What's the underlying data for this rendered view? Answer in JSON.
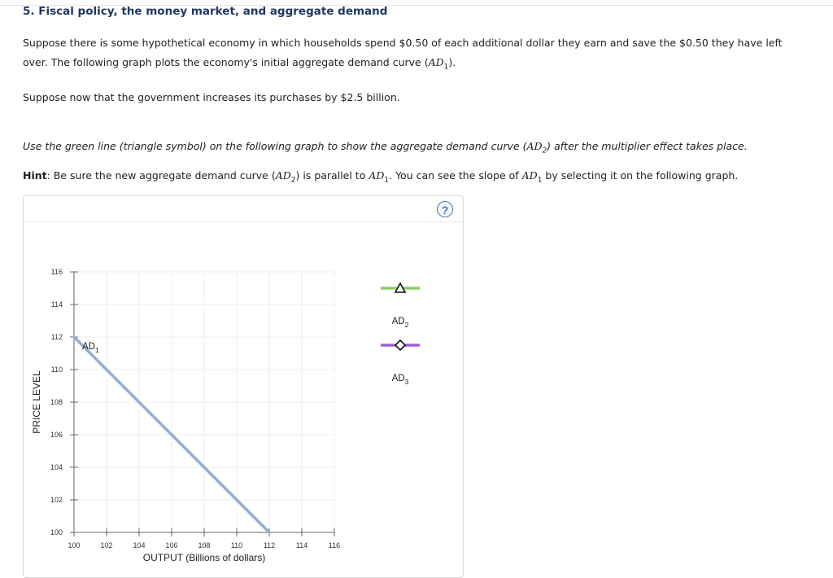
{
  "question": {
    "title": "5. Fiscal policy, the money market, and aggregate demand",
    "p1_line1": "Suppose there is some hypothetical economy in which households spend $0.50 of each additional dollar they earn and save the $0.50 they have left",
    "p1_line2_pre": "over. The following graph plots the economy's initial aggregate demand curve (",
    "p1_line2_math": "AD",
    "p1_line2_sub": "1",
    "p1_line2_post": ").",
    "p2": "Suppose now that the government increases its purchases by $2.5 billion.",
    "instruction_pre": "Use the green line (triangle symbol) on the following graph to show the aggregate demand curve (",
    "instruction_math": "AD",
    "instruction_sub": "2",
    "instruction_post": ") after the multiplier effect takes place.",
    "hint_label": "Hint",
    "hint_pre": ": Be sure the new aggregate demand curve (",
    "hint_math1": "AD",
    "hint_sub1": "2",
    "hint_mid1": ") is parallel to ",
    "hint_math2": "AD",
    "hint_sub2": "1",
    "hint_mid2": ". You can see the slope of ",
    "hint_math3": "AD",
    "hint_sub3": "1",
    "hint_post": " by selecting it on the following graph."
  },
  "panel": {
    "help_label": "?"
  },
  "chart_data": {
    "type": "line",
    "xlabel": "OUTPUT (Billions of dollars)",
    "ylabel": "PRICE LEVEL",
    "xlim": [
      100,
      116
    ],
    "ylim": [
      100,
      116
    ],
    "x_ticks": [
      100,
      102,
      104,
      106,
      108,
      110,
      112,
      114,
      116
    ],
    "y_ticks": [
      100,
      102,
      104,
      106,
      108,
      110,
      112,
      114,
      116
    ],
    "grid": true,
    "series": [
      {
        "name": "AD1",
        "label_main": "AD",
        "label_sub": "1",
        "color": "#8fb0d2",
        "x": [
          100,
          112
        ],
        "y": [
          112,
          100
        ]
      }
    ],
    "legend": [
      {
        "label_main": "AD",
        "label_sub": "2",
        "color": "#88d06a",
        "symbol": "triangle"
      },
      {
        "label_main": "AD",
        "label_sub": "3",
        "color": "#a45fd0",
        "symbol": "diamond"
      }
    ],
    "legend_position": "right"
  }
}
